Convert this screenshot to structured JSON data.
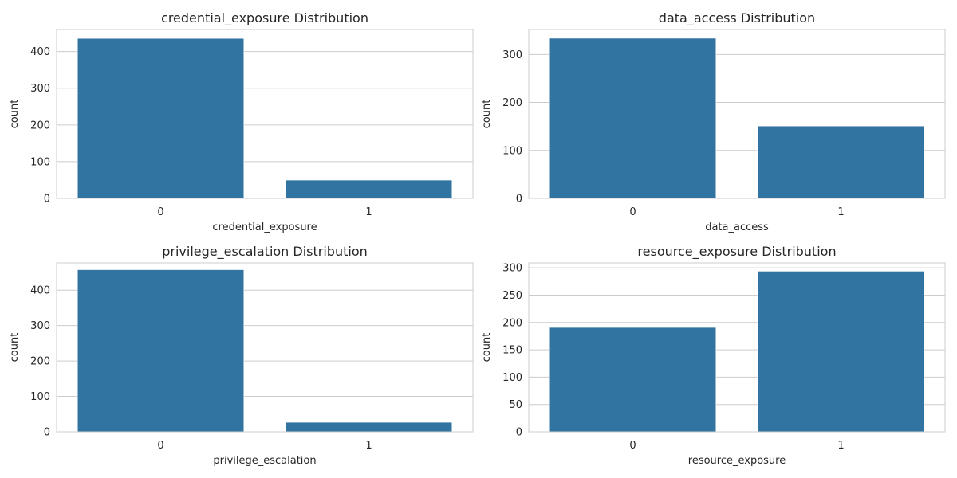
{
  "colors": {
    "bar": "#3274a1",
    "grid": "#cccccc",
    "text": "#262626",
    "background": "#ffffff"
  },
  "chart_data": [
    {
      "type": "bar",
      "title": "credential_exposure Distribution",
      "xlabel": "credential_exposure",
      "ylabel": "count",
      "categories": [
        "0",
        "1"
      ],
      "values": [
        436,
        50
      ],
      "ylim": [
        0,
        460
      ],
      "yticks": [
        0,
        100,
        200,
        300,
        400
      ],
      "grid": true
    },
    {
      "type": "bar",
      "title": "data_access Distribution",
      "xlabel": "data_access",
      "ylabel": "count",
      "categories": [
        "0",
        "1"
      ],
      "values": [
        334,
        151
      ],
      "ylim": [
        0,
        352
      ],
      "yticks": [
        0,
        100,
        200,
        300
      ],
      "grid": true
    },
    {
      "type": "bar",
      "title": "privilege_escalation Distribution",
      "xlabel": "privilege_escalation",
      "ylabel": "count",
      "categories": [
        "0",
        "1"
      ],
      "values": [
        458,
        27
      ],
      "ylim": [
        0,
        477
      ],
      "yticks": [
        0,
        100,
        200,
        300,
        400
      ],
      "grid": true
    },
    {
      "type": "bar",
      "title": "resource_exposure Distribution",
      "xlabel": "resource_exposure",
      "ylabel": "count",
      "categories": [
        "0",
        "1"
      ],
      "values": [
        191,
        294
      ],
      "ylim": [
        0,
        309
      ],
      "yticks": [
        0,
        50,
        100,
        150,
        200,
        250,
        300
      ],
      "grid": true
    }
  ]
}
